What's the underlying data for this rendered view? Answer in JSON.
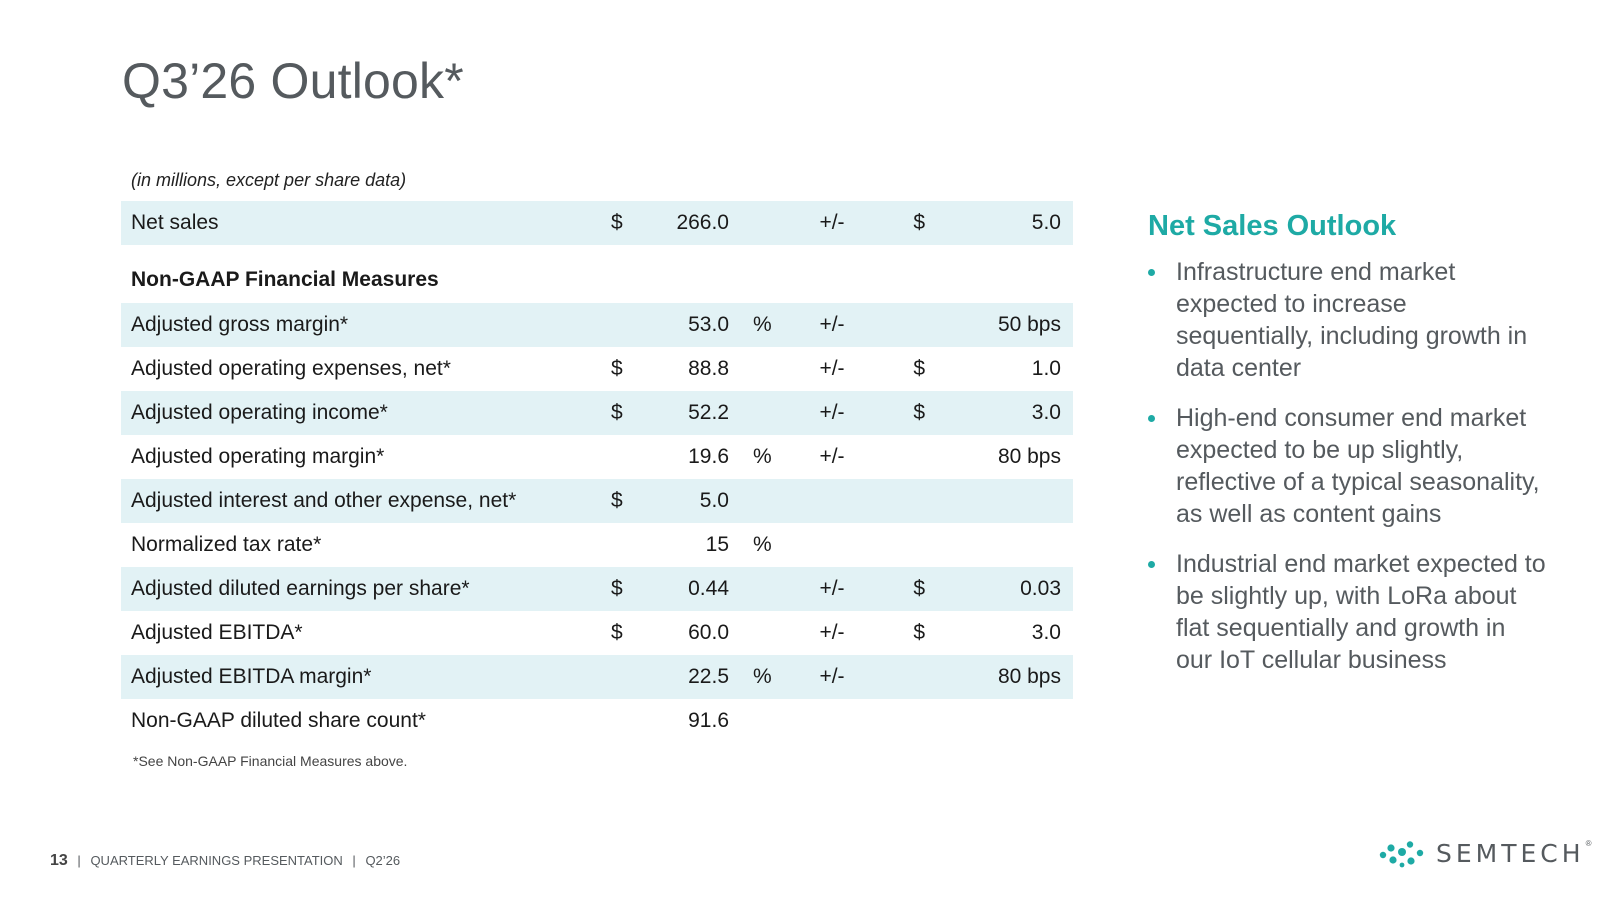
{
  "slide": {
    "title": "Q3’26 Outlook*",
    "units_note": "(in millions, except per share data)",
    "footnote": "*See Non-GAAP Financial Measures above."
  },
  "table": {
    "net_sales": {
      "label": "Net sales",
      "cur1": "$",
      "value": "266.0",
      "pct": "",
      "pm": "+/-",
      "cur2": "$",
      "range": "5.0"
    },
    "section_heading": "Non-GAAP Financial Measures",
    "rows": [
      {
        "label": "Adjusted gross margin*",
        "cur1": "",
        "value": "53.0",
        "pct": "%",
        "pm": "+/-",
        "cur2": "",
        "range": "50 bps"
      },
      {
        "label": "Adjusted operating expenses, net*",
        "cur1": "$",
        "value": "88.8",
        "pct": "",
        "pm": "+/-",
        "cur2": "$",
        "range": "1.0"
      },
      {
        "label": "Adjusted operating income*",
        "cur1": "$",
        "value": "52.2",
        "pct": "",
        "pm": "+/-",
        "cur2": "$",
        "range": "3.0"
      },
      {
        "label": "Adjusted operating margin*",
        "cur1": "",
        "value": "19.6",
        "pct": "%",
        "pm": "+/-",
        "cur2": "",
        "range": "80 bps"
      },
      {
        "label": "Adjusted interest and other expense, net*",
        "cur1": "$",
        "value": "5.0",
        "pct": "",
        "pm": "",
        "cur2": "",
        "range": ""
      },
      {
        "label": "Normalized tax rate*",
        "cur1": "",
        "value": "15",
        "pct": "%",
        "pm": "",
        "cur2": "",
        "range": ""
      },
      {
        "label": "Adjusted diluted earnings per share*",
        "cur1": "$",
        "value": "0.44",
        "pct": "",
        "pm": "+/-",
        "cur2": "$",
        "range": "0.03"
      },
      {
        "label": "Adjusted EBITDA*",
        "cur1": "$",
        "value": "60.0",
        "pct": "",
        "pm": "+/-",
        "cur2": "$",
        "range": "3.0"
      },
      {
        "label": "Adjusted EBITDA margin*",
        "cur1": "",
        "value": "22.5",
        "pct": "%",
        "pm": "+/-",
        "cur2": "",
        "range": "80 bps"
      },
      {
        "label": "Non-GAAP diluted share count*",
        "cur1": "",
        "value": "91.6",
        "pct": "",
        "pm": "",
        "cur2": "",
        "range": ""
      }
    ]
  },
  "sidebar": {
    "title": "Net Sales Outlook",
    "bullets": [
      "Infrastructure end market expected to increase sequentially, including growth in data center",
      "High-end consumer end market expected to be up slightly, reflective of a typical seasonality, as well as content gains",
      "Industrial end market expected to be slightly up, with LoRa about flat sequentially and growth in our IoT cellular business"
    ]
  },
  "footer": {
    "page_number": "13",
    "separator": "|",
    "presentation": "QUARTERLY EARNINGS PRESENTATION",
    "period": "Q2’26"
  },
  "logo": {
    "text": "SEMTECH",
    "mark": "®"
  },
  "colors": {
    "accent": "#1eaaa5",
    "row_shade": "#e2f2f5",
    "title_gray": "#555a5e"
  }
}
